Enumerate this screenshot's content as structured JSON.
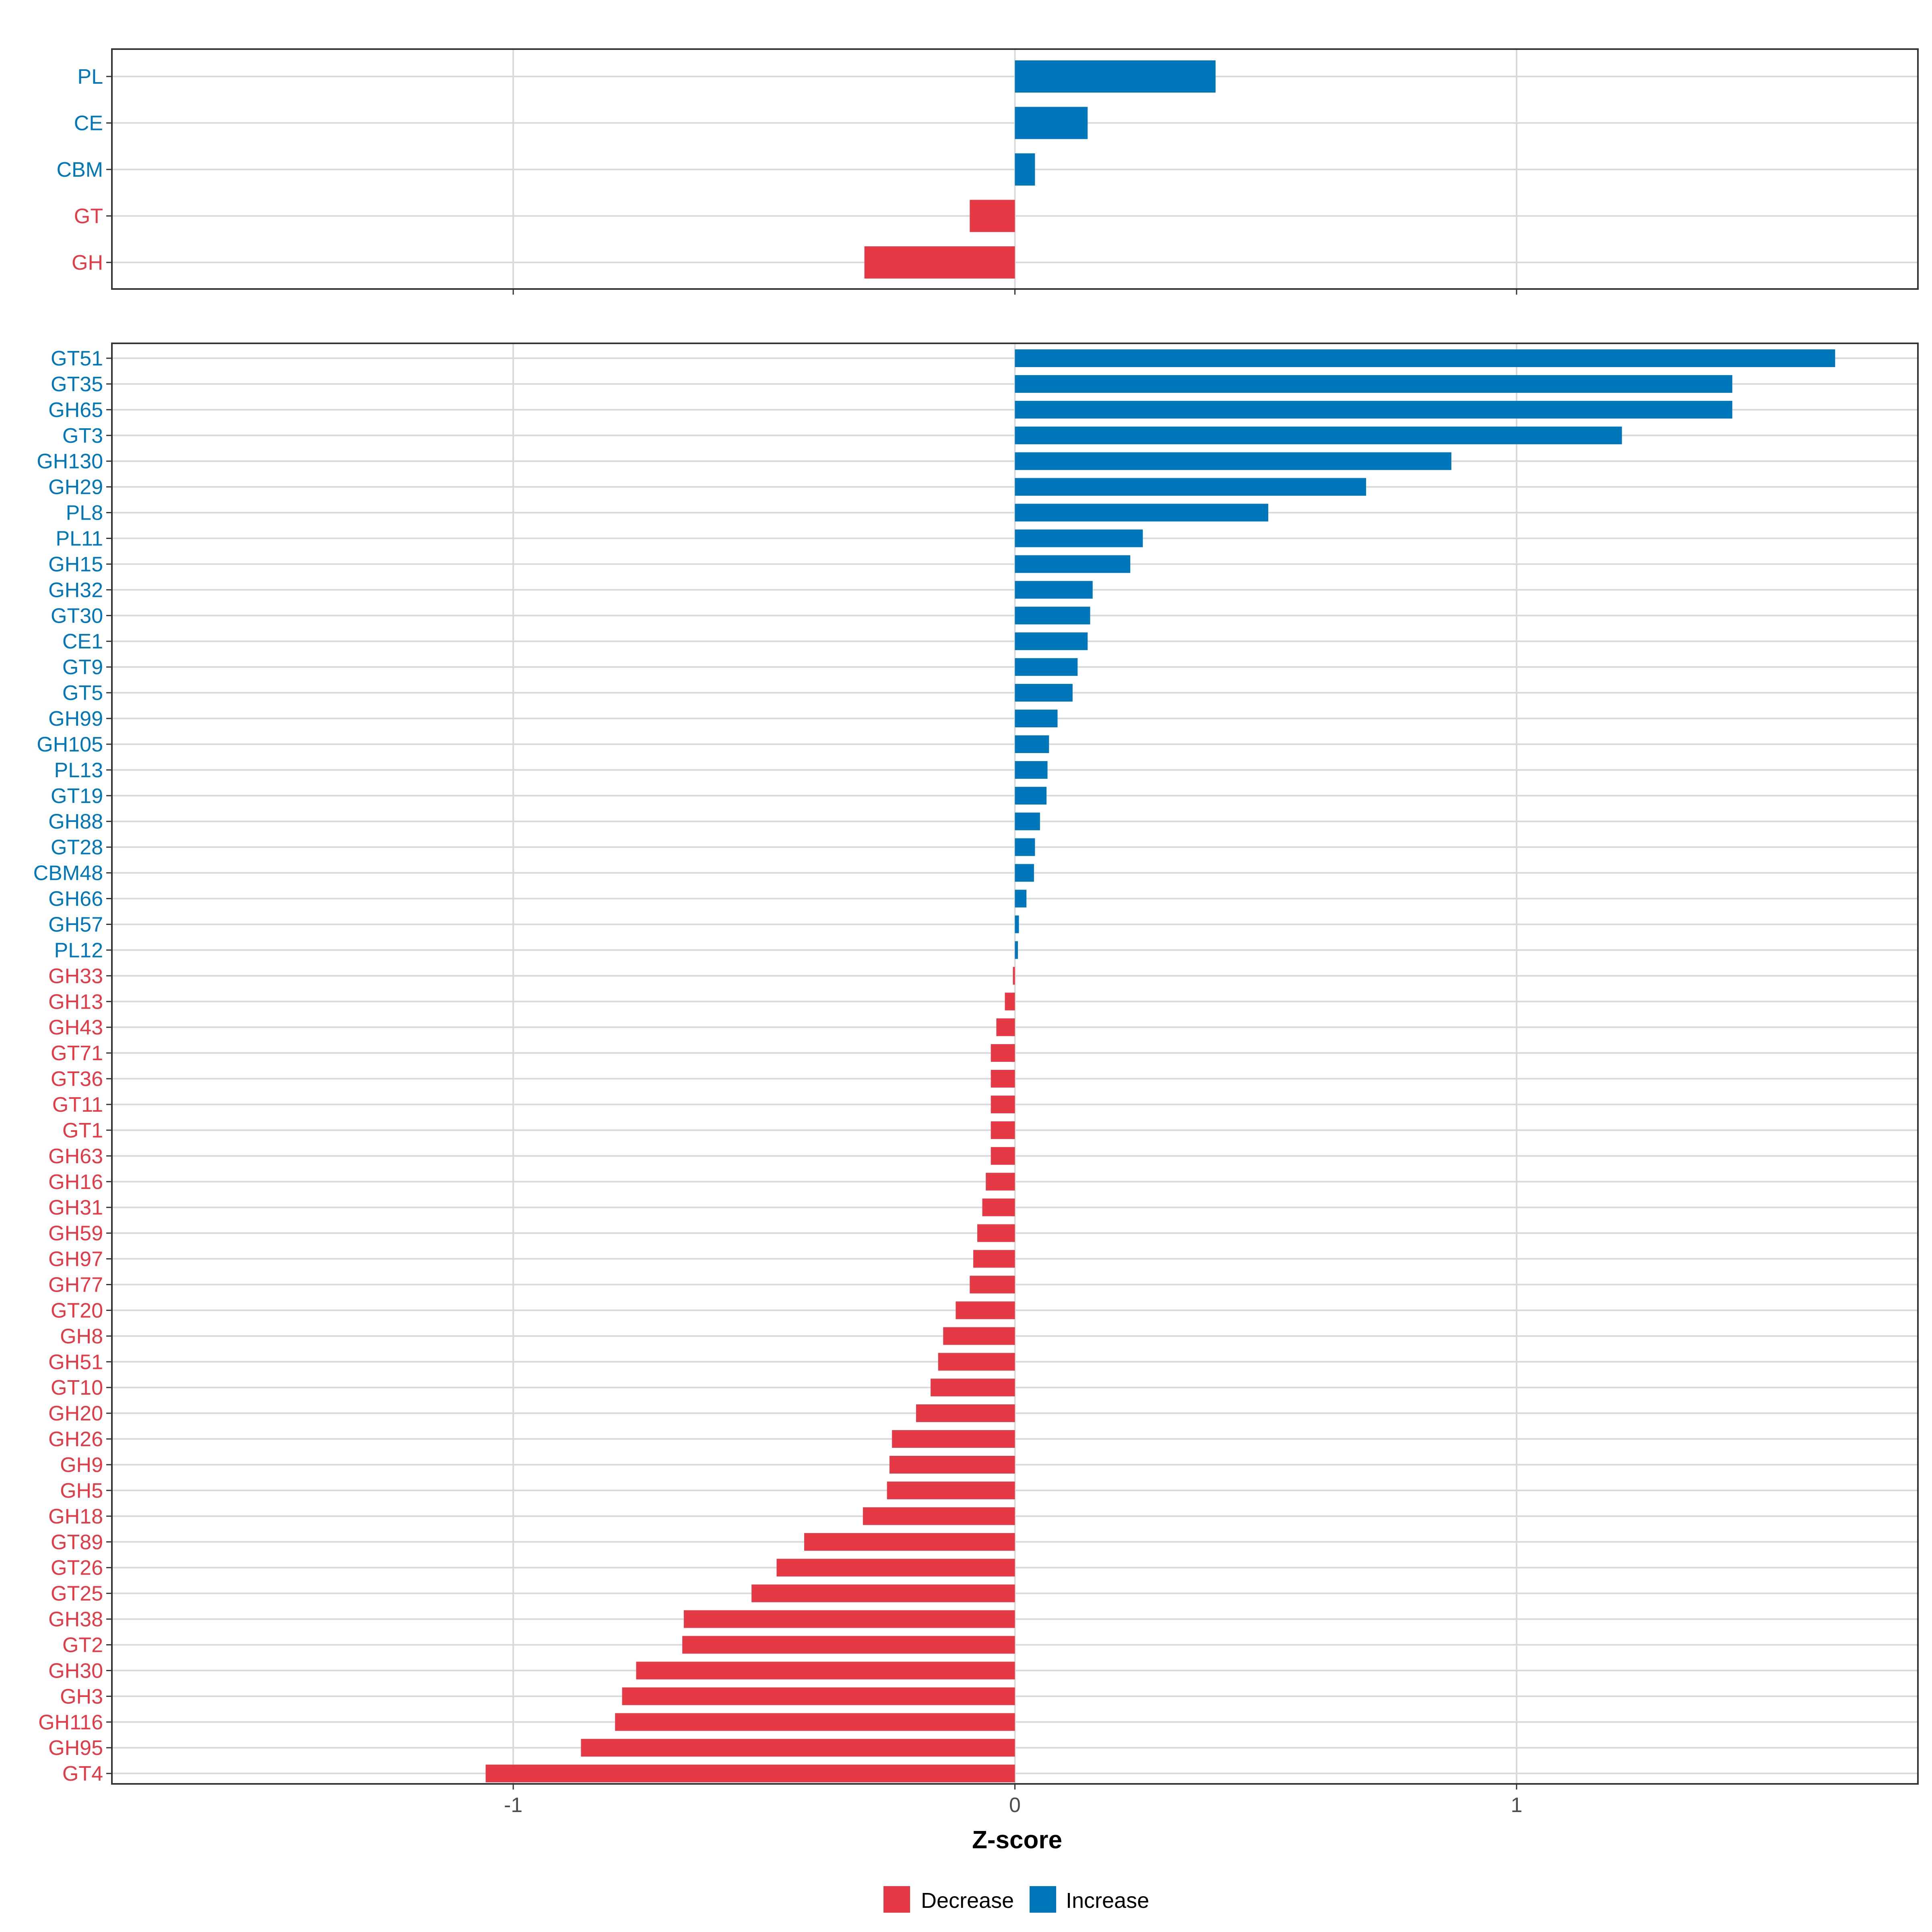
{
  "colors": {
    "increase": "#0077BB",
    "decrease": "#E63946",
    "grid": "#D9D9D9",
    "border": "#333333"
  },
  "chart_data": [
    {
      "type": "bar",
      "orientation": "horizontal",
      "panel": "top",
      "categories": [
        "PL",
        "CE",
        "CBM",
        "GT",
        "GH"
      ],
      "values": [
        0.4,
        0.145,
        0.04,
        -0.09,
        -0.3
      ],
      "xlim": [
        -1.8,
        1.8
      ],
      "xticks": [
        -1,
        0,
        1
      ],
      "show_tick_labels": false
    },
    {
      "type": "bar",
      "orientation": "horizontal",
      "panel": "bottom",
      "categories": [
        "GT51",
        "GT35",
        "GH65",
        "GT3",
        "GH130",
        "GH29",
        "PL8",
        "PL11",
        "GH15",
        "GH32",
        "GT30",
        "CE1",
        "GT9",
        "GT5",
        "GH99",
        "GH105",
        "PL13",
        "GT19",
        "GH88",
        "GT28",
        "CBM48",
        "GH66",
        "GH57",
        "PL12",
        "GH33",
        "GH13",
        "GH43",
        "GT71",
        "GT36",
        "GT11",
        "GT1",
        "GH63",
        "GH16",
        "GH31",
        "GH59",
        "GH97",
        "GH77",
        "GT20",
        "GH8",
        "GH51",
        "GT10",
        "GH20",
        "GH26",
        "GH9",
        "GH5",
        "GH18",
        "GT89",
        "GT26",
        "GT25",
        "GH38",
        "GT2",
        "GH30",
        "GH3",
        "GH116",
        "GH95",
        "GT4"
      ],
      "values": [
        1.635,
        1.43,
        1.43,
        1.21,
        0.87,
        0.7,
        0.505,
        0.255,
        0.23,
        0.155,
        0.15,
        0.145,
        0.125,
        0.115,
        0.085,
        0.068,
        0.065,
        0.063,
        0.05,
        0.04,
        0.038,
        0.023,
        0.008,
        0.006,
        -0.004,
        -0.02,
        -0.037,
        -0.048,
        -0.048,
        -0.048,
        -0.048,
        -0.048,
        -0.058,
        -0.065,
        -0.075,
        -0.083,
        -0.09,
        -0.118,
        -0.143,
        -0.153,
        -0.168,
        -0.197,
        -0.245,
        -0.25,
        -0.255,
        -0.303,
        -0.42,
        -0.475,
        -0.525,
        -0.66,
        -0.663,
        -0.755,
        -0.783,
        -0.797,
        -0.865,
        -1.055
      ],
      "xlim": [
        -1.8,
        1.8
      ],
      "xticks": [
        -1,
        0,
        1
      ],
      "tick_labels": [
        "-1",
        "0",
        "1"
      ],
      "xlabel": "Z-score",
      "ylabel": ""
    }
  ],
  "legend": {
    "items": [
      {
        "label": "Decrease",
        "color_key": "decrease"
      },
      {
        "label": "Increase",
        "color_key": "increase"
      }
    ]
  }
}
